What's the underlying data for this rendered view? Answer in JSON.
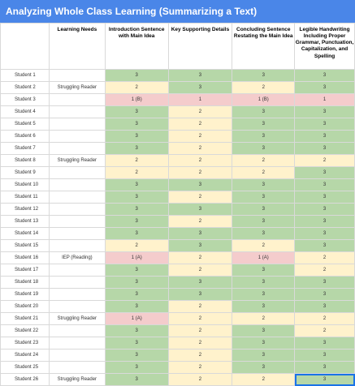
{
  "title": "Analyzing Whole Class Learning (Summarizing a Text)",
  "colors": {
    "header": "#4a86e8",
    "score_3": "#b6d7a8",
    "score_2": "#fff2cc",
    "score_1": "#f4cccc"
  },
  "headers": {
    "student": "",
    "needs": "Learning Needs",
    "intro": "Introduction Sentence with Main Idea",
    "details": "Key Supporting Details",
    "conclusion": "Concluding Sentence Restating the Main Idea",
    "handwriting": "Legible Handwriting Including Proper Grammar, Punctuation, Capitalization, and Spelling"
  },
  "students": [
    {
      "name": "Student 1",
      "needs": "",
      "intro": "3",
      "details": "3",
      "conclusion": "3",
      "handwriting": "3"
    },
    {
      "name": "Student 2",
      "needs": "Struggling Reader",
      "intro": "2",
      "details": "3",
      "conclusion": "2",
      "handwriting": "3"
    },
    {
      "name": "Student 3",
      "needs": "",
      "intro": "1 (B)",
      "details": "1",
      "conclusion": "1 (B)",
      "handwriting": "1"
    },
    {
      "name": "Student 4",
      "needs": "",
      "intro": "3",
      "details": "2",
      "conclusion": "3",
      "handwriting": "3"
    },
    {
      "name": "Student 5",
      "needs": "",
      "intro": "3",
      "details": "2",
      "conclusion": "3",
      "handwriting": "3"
    },
    {
      "name": "Student 6",
      "needs": "",
      "intro": "3",
      "details": "2",
      "conclusion": "3",
      "handwriting": "3"
    },
    {
      "name": "Student 7",
      "needs": "",
      "intro": "3",
      "details": "2",
      "conclusion": "3",
      "handwriting": "3"
    },
    {
      "name": "Student 8",
      "needs": "Struggling Reader",
      "intro": "2",
      "details": "2",
      "conclusion": "2",
      "handwriting": "2"
    },
    {
      "name": "Student 9",
      "needs": "",
      "intro": "2",
      "details": "2",
      "conclusion": "2",
      "handwriting": "3"
    },
    {
      "name": "Student 10",
      "needs": "",
      "intro": "3",
      "details": "3",
      "conclusion": "3",
      "handwriting": "3"
    },
    {
      "name": "Student 11",
      "needs": "",
      "intro": "3",
      "details": "2",
      "conclusion": "3",
      "handwriting": "3"
    },
    {
      "name": "Student 12",
      "needs": "",
      "intro": "3",
      "details": "3",
      "conclusion": "3",
      "handwriting": "3"
    },
    {
      "name": "Student 13",
      "needs": "",
      "intro": "3",
      "details": "2",
      "conclusion": "3",
      "handwriting": "3"
    },
    {
      "name": "Student 14",
      "needs": "",
      "intro": "3",
      "details": "3",
      "conclusion": "3",
      "handwriting": "3"
    },
    {
      "name": "Student 15",
      "needs": "",
      "intro": "2",
      "details": "3",
      "conclusion": "2",
      "handwriting": "3"
    },
    {
      "name": "Student 16",
      "needs": "IEP (Reading)",
      "intro": "1 (A)",
      "details": "2",
      "conclusion": "1 (A)",
      "handwriting": "2"
    },
    {
      "name": "Student 17",
      "needs": "",
      "intro": "3",
      "details": "2",
      "conclusion": "3",
      "handwriting": "2"
    },
    {
      "name": "Student 18",
      "needs": "",
      "intro": "3",
      "details": "3",
      "conclusion": "3",
      "handwriting": "3"
    },
    {
      "name": "Student 19",
      "needs": "",
      "intro": "3",
      "details": "3",
      "conclusion": "3",
      "handwriting": "3"
    },
    {
      "name": "Student 20",
      "needs": "",
      "intro": "3",
      "details": "2",
      "conclusion": "3",
      "handwriting": "3"
    },
    {
      "name": "Student 21",
      "needs": "Struggling Reader",
      "intro": "1 (A)",
      "details": "2",
      "conclusion": "2",
      "handwriting": "2"
    },
    {
      "name": "Student 22",
      "needs": "",
      "intro": "3",
      "details": "2",
      "conclusion": "3",
      "handwriting": "2"
    },
    {
      "name": "Student 23",
      "needs": "",
      "intro": "3",
      "details": "2",
      "conclusion": "3",
      "handwriting": "3"
    },
    {
      "name": "Student 24",
      "needs": "",
      "intro": "3",
      "details": "2",
      "conclusion": "3",
      "handwriting": "3"
    },
    {
      "name": "Student 25",
      "needs": "",
      "intro": "3",
      "details": "2",
      "conclusion": "3",
      "handwriting": "3"
    },
    {
      "name": "Student 26",
      "needs": "Struggling Reader",
      "intro": "3",
      "details": "2",
      "conclusion": "2",
      "handwriting": "3"
    }
  ]
}
